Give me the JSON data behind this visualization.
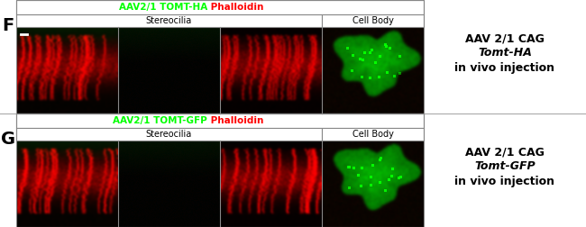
{
  "fig_width": 6.5,
  "fig_height": 2.52,
  "dpi": 100,
  "bg_color": "#ffffff",
  "panel_F": {
    "label": "F",
    "header_text_green": "AAV2/1 TOMT-HA",
    "header_text_red": " Phalloidin",
    "sub_label_stereo": "Stereocilia",
    "sub_label_cell": "Cell Body",
    "annotation_line1": "AAV 2/1 CAG",
    "annotation_line2": "Tomt-HA",
    "annotation_line3": "in vivo injection"
  },
  "panel_G": {
    "label": "G",
    "header_text_green": "AAV2/1 TOMT-GFP",
    "header_text_red": " Phalloidin",
    "sub_label_stereo": "Stereocilia",
    "sub_label_cell": "Cell Body",
    "annotation_line1": "AAV 2/1 CAG",
    "annotation_line2": "Tomt-GFP",
    "annotation_line3": "in vivo injection"
  },
  "green_color": "#00ff00",
  "red_color": "#ff0000",
  "black_color": "#000000",
  "white_color": "#ffffff",
  "label_fontsize": 14,
  "header_fontsize": 7.5,
  "sublabel_fontsize": 7,
  "annotation_fontsize": 9,
  "border_color": "#888888"
}
